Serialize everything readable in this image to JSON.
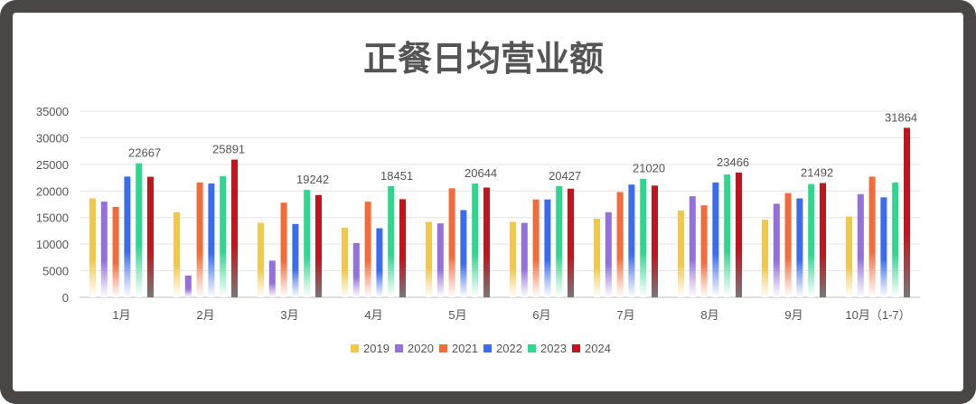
{
  "chart_data": {
    "type": "bar",
    "title": "正餐日均营业额",
    "xlabel": "",
    "ylabel": "",
    "ylim": [
      0,
      35000
    ],
    "yticks": [
      0,
      5000,
      10000,
      15000,
      20000,
      25000,
      30000,
      35000
    ],
    "grid": true,
    "legend": "bottom",
    "categories": [
      "1月",
      "2月",
      "3月",
      "4月",
      "5月",
      "6月",
      "7月",
      "8月",
      "9月",
      "10月（1-7）"
    ],
    "series": [
      {
        "name": "2019",
        "color": "#f2c84b",
        "values": [
          18600,
          16000,
          14000,
          13100,
          14200,
          14200,
          14800,
          16300,
          14600,
          15200
        ]
      },
      {
        "name": "2020",
        "color": "#9370db",
        "values": [
          18000,
          4100,
          6900,
          10200,
          13900,
          14000,
          16000,
          19000,
          17600,
          19400
        ]
      },
      {
        "name": "2021",
        "color": "#f26b3a",
        "values": [
          17000,
          21600,
          17800,
          18000,
          20500,
          18400,
          19800,
          17300,
          19600,
          22700
        ]
      },
      {
        "name": "2022",
        "color": "#3b6cf0",
        "values": [
          22700,
          21400,
          13800,
          13000,
          16400,
          18400,
          21200,
          21600,
          18600,
          18800
        ]
      },
      {
        "name": "2023",
        "color": "#2ed68e",
        "values": [
          25200,
          22800,
          20200,
          20900,
          21400,
          20900,
          22300,
          23100,
          21300,
          21600
        ]
      },
      {
        "name": "2024",
        "color": "#c0161b",
        "values": [
          22667,
          25891,
          19242,
          18451,
          20644,
          20427,
          21020,
          23466,
          21492,
          31864
        ]
      }
    ],
    "data_labels": [
      22667,
      25891,
      19242,
      18451,
      20644,
      20427,
      21020,
      23466,
      21492,
      31864
    ]
  }
}
